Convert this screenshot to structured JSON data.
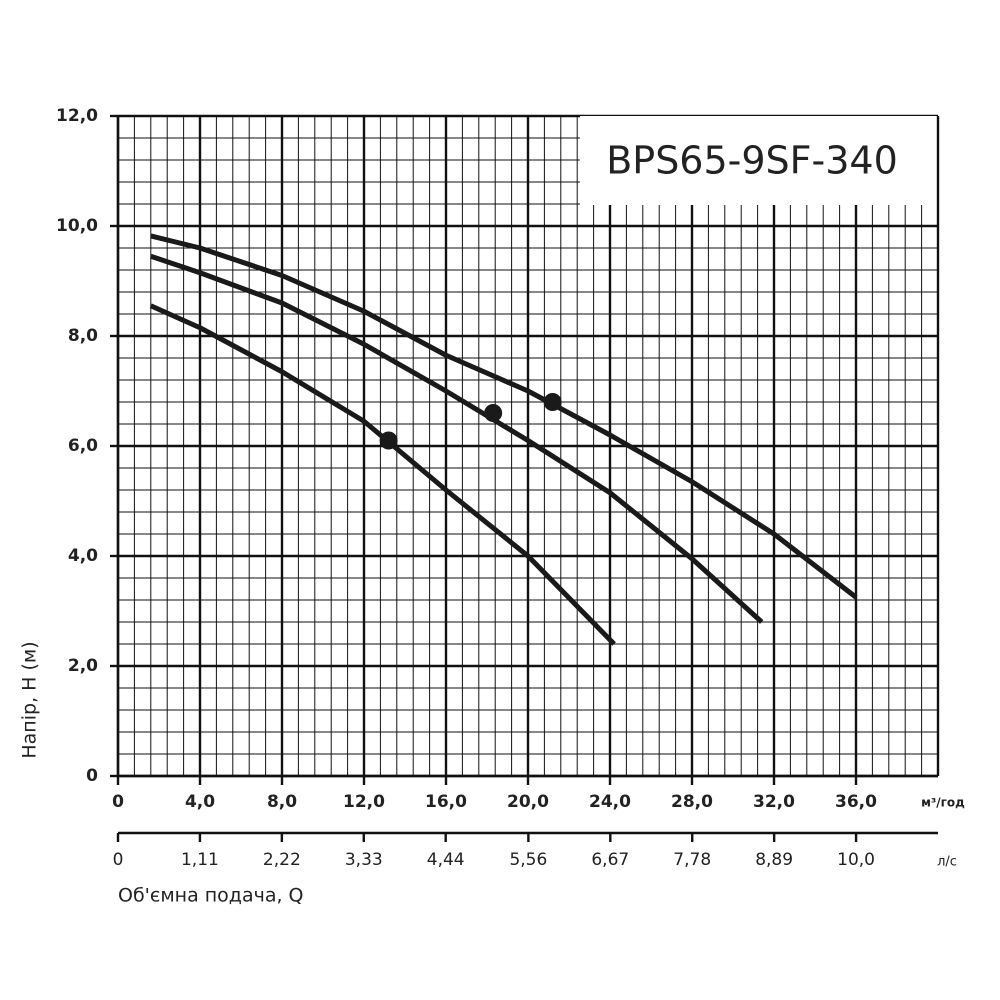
{
  "chart_data": {
    "type": "line",
    "title": "BPS65-9SF-340",
    "y_label": "Напір, H (м)",
    "x_label": "Об'ємна подача, Q",
    "x_unit": "м³/год",
    "x2_unit": "л/с",
    "xlim": [
      0,
      40
    ],
    "ylim": [
      0,
      12
    ],
    "x2lim": [
      0,
      11.11
    ],
    "xticks": [
      0,
      {
        "value": 4,
        "label": "4,0"
      },
      {
        "value": 8,
        "label": "8,0"
      },
      {
        "value": 12,
        "label": "12,0"
      },
      {
        "value": 16,
        "label": "16,0"
      },
      {
        "value": 20,
        "label": "20,0"
      },
      {
        "value": 24,
        "label": "24,0"
      },
      {
        "value": 28,
        "label": "28,0"
      },
      {
        "value": 32,
        "label": "32,0"
      },
      {
        "value": 36,
        "label": "36,0"
      }
    ],
    "x2ticks": [
      0,
      {
        "value": 1.11,
        "label": "1,11"
      },
      {
        "value": 2.22,
        "label": "2,22"
      },
      {
        "value": 3.33,
        "label": "3,33"
      },
      {
        "value": 4.44,
        "label": "4,44"
      },
      {
        "value": 5.56,
        "label": "5,56"
      },
      {
        "value": 6.67,
        "label": "6,67"
      },
      {
        "value": 7.78,
        "label": "7,78"
      },
      {
        "value": 8.89,
        "label": "8,89"
      },
      {
        "value": 10,
        "label": "10,0"
      }
    ],
    "yticks": [
      0,
      {
        "value": 2,
        "label": "2,0"
      },
      {
        "value": 4,
        "label": "4,0"
      },
      {
        "value": 6,
        "label": "6,0"
      },
      {
        "value": 8,
        "label": "8,0"
      },
      {
        "value": 10,
        "label": "10,0"
      },
      {
        "value": 12,
        "label": "12,0"
      }
    ],
    "grid": true,
    "minor_divisions": 5,
    "series": [
      {
        "color": "#1a1a1a",
        "x": [
          1.6,
          4,
          8,
          12,
          16,
          20,
          24,
          28,
          32,
          36
        ],
        "values": [
          9.82,
          9.6,
          9.1,
          8.45,
          7.65,
          7.0,
          6.2,
          5.35,
          4.4,
          3.25
        ],
        "point_x": 21.2,
        "point_y": 6.8
      },
      {
        "color": "#1a1a1a",
        "x": [
          1.6,
          4,
          8,
          12,
          16,
          20,
          24,
          28,
          31.4
        ],
        "values": [
          9.45,
          9.15,
          8.6,
          7.85,
          7.0,
          6.1,
          5.15,
          3.95,
          2.8
        ],
        "point_x": 18.3,
        "point_y": 6.6
      },
      {
        "color": "#1a1a1a",
        "x": [
          1.6,
          4,
          8,
          12,
          16,
          20,
          24.2
        ],
        "values": [
          8.55,
          8.15,
          7.35,
          6.45,
          5.2,
          4.0,
          2.4
        ],
        "point_x": 13.2,
        "point_y": 6.1
      }
    ]
  }
}
